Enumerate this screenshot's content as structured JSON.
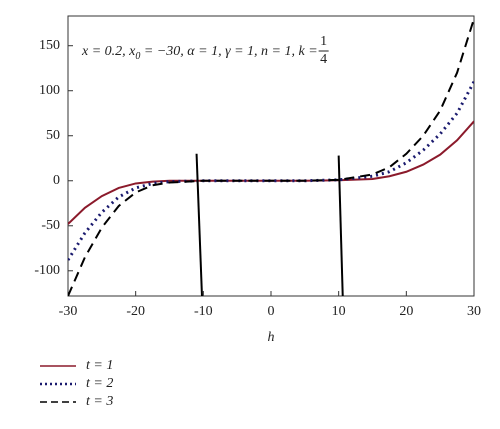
{
  "chart_data": {
    "type": "line",
    "xlabel": "h",
    "annotation": {
      "text": "x = 0.2, x",
      "sub": "0",
      "rest": " = −30, α = 1, γ = 1, n = 1, k = ",
      "num": "1",
      "den": "4"
    },
    "x": [
      -30,
      -27.5,
      -25,
      -22.5,
      -20,
      -17.5,
      -15,
      -10,
      -5,
      0,
      5,
      10,
      15,
      17.5,
      20,
      22.5,
      25,
      27.5,
      30
    ],
    "series": [
      {
        "name": "t = 1",
        "color": "#8b1a2b",
        "dash": "solid",
        "values": [
          -48,
          -30,
          -17,
          -8,
          -3,
          -1,
          0,
          0,
          0,
          0,
          0,
          0.5,
          2,
          5,
          10,
          18,
          29,
          45,
          66
        ]
      },
      {
        "name": "t = 2",
        "color": "#1a1a6e",
        "dash": "dotted",
        "values": [
          -88,
          -58,
          -35,
          -18,
          -8,
          -3,
          -1,
          0,
          0,
          0,
          0,
          1,
          5,
          10,
          20,
          34,
          52,
          75,
          110
        ]
      },
      {
        "name": "t = 3",
        "color": "#000000",
        "dash": "dashed",
        "values": [
          -128,
          -85,
          -52,
          -28,
          -13,
          -5,
          -2,
          0,
          0,
          0,
          0,
          1,
          7,
          15,
          30,
          50,
          78,
          120,
          180
        ]
      }
    ],
    "lines": [
      {
        "color": "#000000",
        "x": [
          -11,
          -10.2
        ],
        "values": [
          30,
          -128
        ]
      },
      {
        "color": "#000000",
        "x": [
          10,
          10.6
        ],
        "values": [
          28,
          -128
        ]
      }
    ],
    "xlim": [
      -30,
      30
    ],
    "xticks": [
      -30,
      -20,
      -10,
      0,
      10,
      20,
      30
    ],
    "ylim": [
      -128,
      183
    ],
    "yticks": [
      -100,
      -50,
      0,
      50,
      100,
      150
    ]
  }
}
